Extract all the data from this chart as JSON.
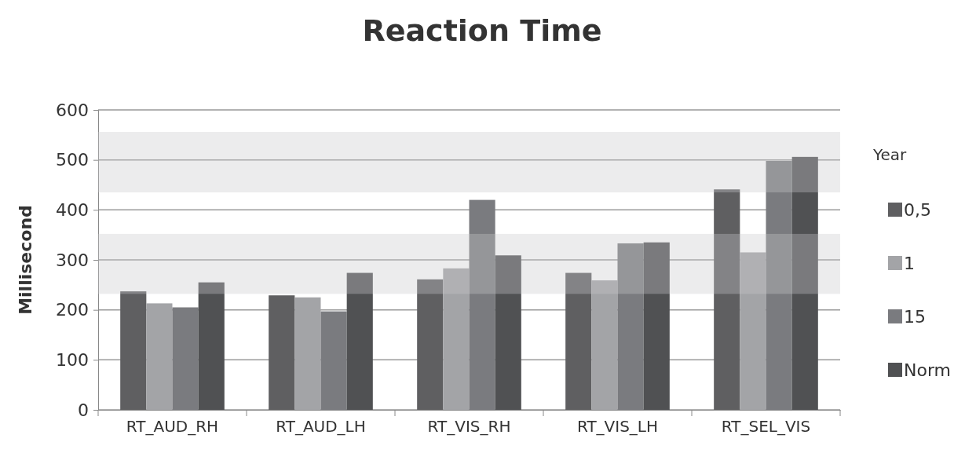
{
  "chart_data": {
    "type": "bar",
    "title": "Reaction Time",
    "ylabel": "Millisecond",
    "legend_title": "Year",
    "categories": [
      "RT_AUD_RH",
      "RT_AUD_LH",
      "RT_VIS_RH",
      "RT_VIS_LH",
      "RT_SEL_VIS"
    ],
    "series": [
      {
        "name": "0,5",
        "color": "#5f5f61",
        "values": [
          237,
          229,
          261,
          274,
          441
        ]
      },
      {
        "name": "1",
        "color": "#a3a4a7",
        "values": [
          213,
          225,
          283,
          259,
          315
        ]
      },
      {
        "name": "15",
        "color": "#7a7b7f",
        "values": [
          205,
          197,
          420,
          333,
          498
        ]
      },
      {
        "name": "Norm",
        "color": "#505153",
        "values": [
          255,
          274,
          309,
          335,
          506
        ]
      }
    ],
    "ylim": [
      0,
      600
    ],
    "yticks": [
      0,
      100,
      200,
      300,
      400,
      500,
      600
    ],
    "grid": "y",
    "legend": "right",
    "bands": [
      {
        "axis": "y",
        "from": 232,
        "to": 352,
        "color": "#c8c9cc"
      },
      {
        "axis": "y",
        "from": 435,
        "to": 556,
        "color": "#c8c9cc"
      }
    ]
  }
}
